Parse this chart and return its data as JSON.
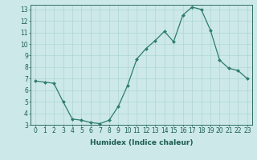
{
  "x": [
    0,
    1,
    2,
    3,
    4,
    5,
    6,
    7,
    8,
    9,
    10,
    11,
    12,
    13,
    14,
    15,
    16,
    17,
    18,
    19,
    20,
    21,
    22,
    23
  ],
  "y": [
    6.8,
    6.7,
    6.6,
    5.0,
    3.5,
    3.4,
    3.2,
    3.1,
    3.4,
    4.6,
    6.4,
    8.7,
    9.6,
    10.3,
    11.1,
    10.2,
    12.5,
    13.2,
    13.0,
    11.2,
    8.6,
    7.9,
    7.7,
    7.0
  ],
  "xlabel": "Humidex (Indice chaleur)",
  "ylim": [
    3,
    13.4
  ],
  "xlim": [
    -0.5,
    23.5
  ],
  "yticks": [
    3,
    4,
    5,
    6,
    7,
    8,
    9,
    10,
    11,
    12,
    13
  ],
  "xticks": [
    0,
    1,
    2,
    3,
    4,
    5,
    6,
    7,
    8,
    9,
    10,
    11,
    12,
    13,
    14,
    15,
    16,
    17,
    18,
    19,
    20,
    21,
    22,
    23
  ],
  "xtick_labels": [
    "0",
    "1",
    "2",
    "3",
    "4",
    "5",
    "6",
    "7",
    "8",
    "9",
    "10",
    "11",
    "12",
    "13",
    "14",
    "15",
    "16",
    "17",
    "18",
    "19",
    "20",
    "21",
    "22",
    "23"
  ],
  "line_color": "#2d7d6e",
  "marker_color": "#2d7d6e",
  "background_color": "#cce8e8",
  "grid_color": "#aed4d4",
  "label_color": "#1a5c52",
  "tick_color": "#1a5c52",
  "font_size": 5.5,
  "xlabel_fontsize": 6.5
}
